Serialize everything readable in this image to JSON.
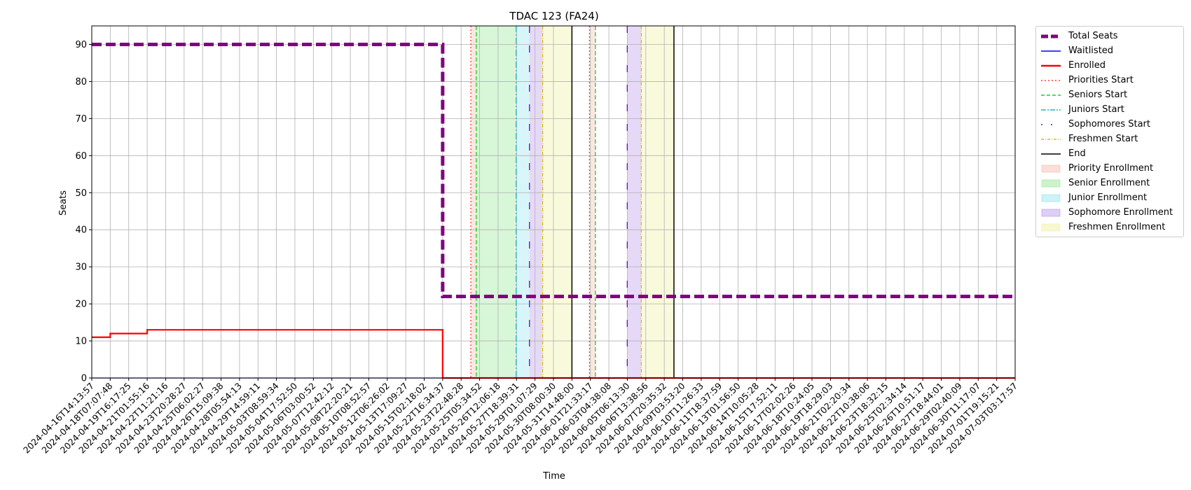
{
  "chart_data": {
    "type": "line",
    "title": "TDAC 123 (FA24)",
    "xlabel": "Time",
    "ylabel": "Seats",
    "ylim": [
      0,
      95
    ],
    "yticks": [
      0,
      10,
      20,
      30,
      40,
      50,
      60,
      70,
      80,
      90
    ],
    "grid": true,
    "legend_position": "outside-right",
    "xlim": [
      "2024-04-16T14:13:57",
      "2024-07-03T03:17:57"
    ],
    "x_tick_labels": [
      "2024-04-16T14:13:57",
      "2024-04-18T07:07:48",
      "2024-04-19T16:17:25",
      "2024-04-21T01:55:16",
      "2024-04-22T11:21:16",
      "2024-04-23T20:28:27",
      "2024-04-25T06:02:27",
      "2024-04-26T15:09:38",
      "2024-04-28T05:54:13",
      "2024-04-29T14:59:11",
      "2024-05-03T08:59:34",
      "2024-05-04T17:52:50",
      "2024-05-06T03:00:52",
      "2024-05-07T12:42:12",
      "2024-05-08T22:20:21",
      "2024-05-10T08:52:57",
      "2024-05-12T06:26:02",
      "2024-05-13T17:09:27",
      "2024-05-15T02:18:02",
      "2024-05-22T16:34:37",
      "2024-05-23T22:48:28",
      "2024-05-25T05:34:52",
      "2024-05-26T12:06:18",
      "2024-05-27T18:39:31",
      "2024-05-29T01:07:29",
      "2024-05-30T08:00:30",
      "2024-05-31T14:48:00",
      "2024-06-01T21:33:17",
      "2024-06-03T04:38:08",
      "2024-06-05T06:13:30",
      "2024-06-06T13:38:56",
      "2024-06-07T20:35:32",
      "2024-06-09T03:53:20",
      "2024-06-10T11:26:33",
      "2024-06-11T18:37:59",
      "2024-06-13T01:56:50",
      "2024-06-14T10:05:28",
      "2024-06-15T17:52:11",
      "2024-06-17T02:02:26",
      "2024-06-18T10:24:05",
      "2024-06-19T18:29:03",
      "2024-06-21T02:20:34",
      "2024-06-22T10:38:06",
      "2024-06-23T18:32:15",
      "2024-06-25T02:34:14",
      "2024-06-26T10:51:17",
      "2024-06-27T18:44:01",
      "2024-06-29T02:40:09",
      "2024-06-30T11:17:07",
      "2024-07-01T19:15:21",
      "2024-07-03T03:17:57"
    ],
    "series": [
      {
        "name": "Total Seats",
        "color": "#800080",
        "style": "dashed-thick",
        "step": true,
        "points": [
          {
            "x": "2024-04-16T14:13:57",
            "y": 90
          },
          {
            "x": "2024-05-22T16:34:37",
            "y": 90
          },
          {
            "x": "2024-05-22T16:34:37",
            "y": 22
          },
          {
            "x": "2024-07-03T03:17:57",
            "y": 22
          }
        ]
      },
      {
        "name": "Waitlisted",
        "color": "#0000ff",
        "style": "solid",
        "step": true,
        "points": [
          {
            "x": "2024-04-16T14:13:57",
            "y": 0
          },
          {
            "x": "2024-07-03T03:17:57",
            "y": 0
          }
        ]
      },
      {
        "name": "Enrolled",
        "color": "#ff0000",
        "style": "solid-thick",
        "step": true,
        "points": [
          {
            "x": "2024-04-16T14:13:57",
            "y": 11
          },
          {
            "x": "2024-04-18T07:07:48",
            "y": 12
          },
          {
            "x": "2024-04-21T01:55:16",
            "y": 13
          },
          {
            "x": "2024-05-22T16:34:37",
            "y": 0
          },
          {
            "x": "2024-07-03T03:17:57",
            "y": 0
          }
        ]
      }
    ],
    "vertical_markers": [
      {
        "name": "Priorities Start",
        "color": "#ff3b30",
        "style": "dotted",
        "x": [
          "2024-05-24T15:00:00",
          "2024-06-01T20:00:00"
        ]
      },
      {
        "name": "Seniors Start",
        "color": "#22cc22",
        "style": "dashed",
        "x": [
          "2024-05-25T00:00:00",
          "2024-06-02T06:00:00"
        ]
      },
      {
        "name": "Juniors Start",
        "color": "#17becf",
        "style": "dashdot",
        "x": [
          "2024-05-27T18:00:00"
        ]
      },
      {
        "name": "Sophomores Start",
        "color": "#6a0dad",
        "style": "loosedash",
        "x": [
          "2024-05-28T16:00:00",
          "2024-06-05T06:00:00"
        ]
      },
      {
        "name": "Freshmen Start",
        "color": "#d4c400",
        "style": "dashdot-fine",
        "x": [
          "2024-05-29T14:00:00",
          "2024-06-06T06:00:00"
        ]
      },
      {
        "name": "End",
        "color": "#000000",
        "style": "solid",
        "x": [
          "2024-05-31T14:48:00",
          "2024-06-08T13:00:00"
        ]
      }
    ],
    "spans": [
      {
        "name": "Priority Enrollment",
        "color": "#f4b9a8",
        "ranges": [
          [
            "2024-05-24T15:00:00",
            "2024-05-25T00:00:00"
          ],
          [
            "2024-06-01T20:00:00",
            "2024-06-02T06:00:00"
          ]
        ]
      },
      {
        "name": "Senior Enrollment",
        "color": "#8fe68f",
        "ranges": [
          [
            "2024-05-25T00:00:00",
            "2024-05-27T18:00:00"
          ]
        ]
      },
      {
        "name": "Junior Enrollment",
        "color": "#90e4ed",
        "ranges": [
          [
            "2024-05-27T18:00:00",
            "2024-05-28T16:00:00"
          ]
        ]
      },
      {
        "name": "Sophomore Enrollment",
        "color": "#b693e8",
        "ranges": [
          [
            "2024-05-28T16:00:00",
            "2024-05-29T14:00:00"
          ],
          [
            "2024-06-05T06:00:00",
            "2024-06-06T06:00:00"
          ]
        ]
      },
      {
        "name": "Freshmen Enrollment",
        "color": "#eef09a",
        "ranges": [
          [
            "2024-05-29T14:00:00",
            "2024-05-31T14:48:00"
          ],
          [
            "2024-06-06T06:00:00",
            "2024-06-08T13:00:00"
          ]
        ]
      }
    ]
  },
  "legend": [
    {
      "label": "Total Seats",
      "kind": "line",
      "color": "#800080",
      "style": "dashed-thick"
    },
    {
      "label": "Waitlisted",
      "kind": "line",
      "color": "#0000ff",
      "style": "solid"
    },
    {
      "label": "Enrolled",
      "kind": "line",
      "color": "#ff0000",
      "style": "solid-thick"
    },
    {
      "label": "Priorities Start",
      "kind": "line",
      "color": "#ff3b30",
      "style": "dotted"
    },
    {
      "label": "Seniors Start",
      "kind": "line",
      "color": "#22cc22",
      "style": "dashed"
    },
    {
      "label": "Juniors Start",
      "kind": "line",
      "color": "#17becf",
      "style": "dashdot"
    },
    {
      "label": "Sophomores Start",
      "kind": "line",
      "color": "#6a0dad",
      "style": "loosedash"
    },
    {
      "label": "Freshmen Start",
      "kind": "line",
      "color": "#d4c400",
      "style": "dashdot-fine"
    },
    {
      "label": "End",
      "kind": "line",
      "color": "#000000",
      "style": "solid"
    },
    {
      "label": "Priority Enrollment",
      "kind": "patch",
      "color": "#f4b9a8"
    },
    {
      "label": "Senior Enrollment",
      "kind": "patch",
      "color": "#8fe68f"
    },
    {
      "label": "Junior Enrollment",
      "kind": "patch",
      "color": "#90e4ed"
    },
    {
      "label": "Sophomore Enrollment",
      "kind": "patch",
      "color": "#b693e8"
    },
    {
      "label": "Freshmen Enrollment",
      "kind": "patch",
      "color": "#eef09a"
    }
  ]
}
